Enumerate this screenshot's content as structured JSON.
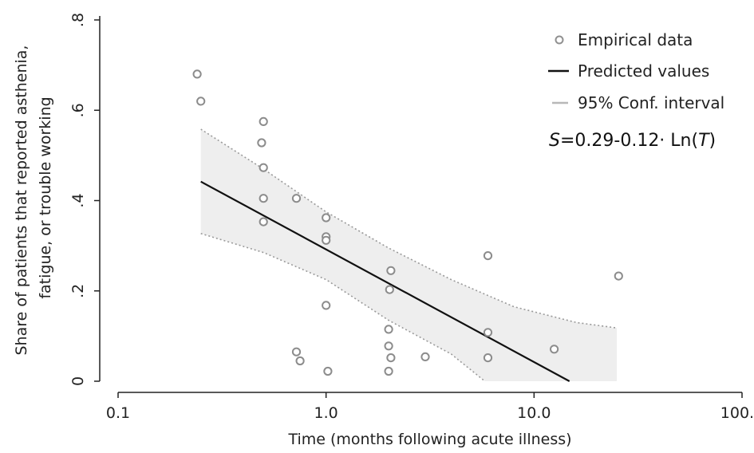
{
  "chart_data": {
    "type": "scatter",
    "x_scale": "log",
    "xlim": [
      0.1,
      100.0
    ],
    "ylim": [
      0,
      0.8
    ],
    "grid": false,
    "xlabel": "Time (months following acute illness)",
    "ylabel_lines": [
      "Share of patients that reported asthenia,",
      "fatigue, or trouble working"
    ],
    "x_ticks": [
      {
        "value": 0.1,
        "label": "0.1"
      },
      {
        "value": 1.0,
        "label": "1.0"
      },
      {
        "value": 10.0,
        "label": "10.0"
      },
      {
        "value": 100.0,
        "label": "100.0"
      }
    ],
    "y_ticks": [
      {
        "value": 0,
        "label": "0"
      },
      {
        "value": 0.2,
        "label": ".2"
      },
      {
        "value": 0.4,
        "label": ".4"
      },
      {
        "value": 0.6,
        "label": ".6"
      },
      {
        "value": 0.8,
        "label": ".8"
      }
    ],
    "legend_position": "top-right",
    "legend": [
      {
        "label": "Empirical data",
        "symbol": "circle"
      },
      {
        "label": "Predicted values",
        "symbol": "line"
      },
      {
        "label": "95% Conf. interval",
        "symbol": "short-line"
      }
    ],
    "formula": {
      "S": "S",
      "mid": "=0.29-0.12· Ln(",
      "T": "T",
      "end": ")"
    },
    "series": [
      {
        "name": "Empirical data",
        "kind": "points",
        "points": [
          [
            0.24,
            0.68
          ],
          [
            0.25,
            0.62
          ],
          [
            0.5,
            0.575
          ],
          [
            0.49,
            0.528
          ],
          [
            0.5,
            0.473
          ],
          [
            0.5,
            0.405
          ],
          [
            0.5,
            0.353
          ],
          [
            0.72,
            0.405
          ],
          [
            0.72,
            0.065
          ],
          [
            0.75,
            0.045
          ],
          [
            1.0,
            0.362
          ],
          [
            1.0,
            0.32
          ],
          [
            1.0,
            0.312
          ],
          [
            1.0,
            0.168
          ],
          [
            1.02,
            0.022
          ],
          [
            2.05,
            0.245
          ],
          [
            2.02,
            0.203
          ],
          [
            2.0,
            0.115
          ],
          [
            2.0,
            0.078
          ],
          [
            2.05,
            0.052
          ],
          [
            2.0,
            0.022
          ],
          [
            3.0,
            0.054
          ],
          [
            6.0,
            0.278
          ],
          [
            6.0,
            0.108
          ],
          [
            6.0,
            0.052
          ],
          [
            12.5,
            0.071
          ],
          [
            25.5,
            0.233
          ]
        ]
      },
      {
        "name": "Predicted values",
        "kind": "line",
        "points": [
          [
            0.25,
            0.442
          ],
          [
            14.8,
            0.0
          ]
        ]
      },
      {
        "name": "95% Conf. interval",
        "kind": "band",
        "upper": [
          [
            0.25,
            0.558
          ],
          [
            0.5,
            0.47
          ],
          [
            1.0,
            0.375
          ],
          [
            2.0,
            0.295
          ],
          [
            4.0,
            0.225
          ],
          [
            8.0,
            0.165
          ],
          [
            16.0,
            0.13
          ],
          [
            25.0,
            0.118
          ]
        ],
        "lower": [
          [
            0.25,
            0.327
          ],
          [
            0.5,
            0.285
          ],
          [
            1.0,
            0.225
          ],
          [
            2.0,
            0.135
          ],
          [
            4.0,
            0.06
          ],
          [
            5.8,
            0.0
          ],
          [
            25.0,
            0.0
          ]
        ]
      }
    ]
  }
}
